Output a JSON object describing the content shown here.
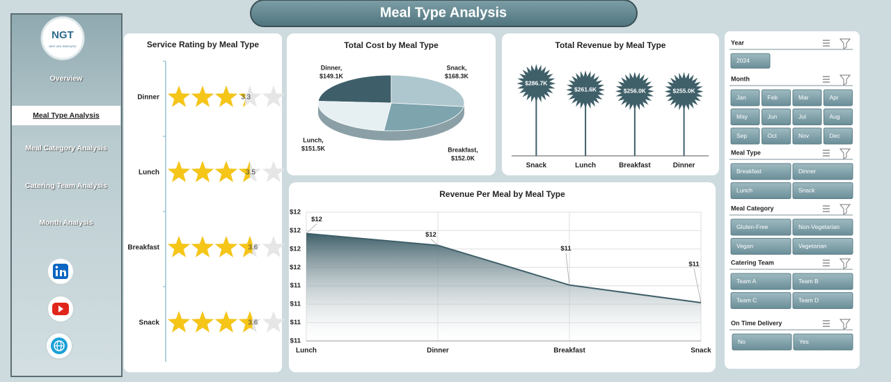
{
  "header": {
    "title": "Meal Type Analysis"
  },
  "sidebar": {
    "logo": "NGT",
    "logo_subtitle": "NEXT GEN TEMPLATES",
    "nav": [
      "Overview",
      "Meal Type Analysis",
      "Meal Category Analysis",
      "Catering Team Analysis",
      "Month Analysis"
    ]
  },
  "slicers": [
    {
      "title": "Year",
      "items": [
        "2024"
      ]
    },
    {
      "title": "Month",
      "items": [
        "Jan",
        "Feb",
        "Mar",
        "Apr",
        "May",
        "Jun",
        "Jul",
        "Aug",
        "Sep",
        "Oct",
        "Nov",
        "Dec"
      ]
    },
    {
      "title": "Meal Type",
      "items": [
        "Breakfast",
        "Dinner",
        "Lunch",
        "Snack"
      ]
    },
    {
      "title": "Meal Category",
      "items": [
        "Gluten-Free",
        "Non-Vegetarian",
        "Vegan",
        "Vegetarian"
      ]
    },
    {
      "title": "Catering Team",
      "items": [
        "Team A",
        "Team B",
        "Team C",
        "Team D"
      ]
    },
    {
      "title": "On Time Delivery",
      "items": [
        "No",
        "Yes"
      ]
    }
  ],
  "chart_data": [
    {
      "type": "rating",
      "title": "Service Rating by Meal Type",
      "categories": [
        "Dinner",
        "Lunch",
        "Breakfast",
        "Snack"
      ],
      "values": [
        3.3,
        3.5,
        3.6,
        3.6
      ],
      "xlim": [
        0,
        5
      ],
      "color": "#f5c518"
    },
    {
      "type": "pie",
      "title": "Total Cost by Meal Type",
      "categories": [
        "Dinner",
        "Snack",
        "Breakfast",
        "Lunch"
      ],
      "values": [
        149100,
        168300,
        152000,
        151500
      ],
      "value_labels": [
        "$149.1K",
        "$168.3K",
        "$152.0K",
        "$151.5K"
      ],
      "colors": [
        "#3e5f6a",
        "#aec7ce",
        "#7ea4ae",
        "#e6eff2"
      ]
    },
    {
      "type": "lollipop",
      "title": "Total Revenue by Meal Type",
      "categories": [
        "Snack",
        "Lunch",
        "Breakfast",
        "Dinner"
      ],
      "values": [
        286700,
        261600,
        256000,
        255000
      ],
      "value_labels": [
        "$286.7K",
        "$261.6K",
        "$256.0K",
        "$255.0K"
      ],
      "color": "#3f5f69"
    },
    {
      "type": "area",
      "title": "Revenue Per Meal by Meal Type",
      "categories": [
        "Lunch",
        "Dinner",
        "Breakfast",
        "Snack"
      ],
      "values": [
        11.73,
        11.65,
        11.38,
        11.26
      ],
      "value_labels": [
        "$12",
        "$12",
        "$11",
        "$11"
      ],
      "ylim": [
        11,
        11.875
      ],
      "yticks": [
        {
          "value": 11,
          "label": "$11"
        },
        {
          "value": 11.125,
          "label": "$11"
        },
        {
          "value": 11.25,
          "label": "$11"
        },
        {
          "value": 11.375,
          "label": "$11"
        },
        {
          "value": 11.5,
          "label": "$12"
        },
        {
          "value": 11.625,
          "label": "$12"
        },
        {
          "value": 11.75,
          "label": "$12"
        },
        {
          "value": 11.875,
          "label": "$12"
        }
      ],
      "grid": true,
      "color": "#3f5f69"
    }
  ]
}
